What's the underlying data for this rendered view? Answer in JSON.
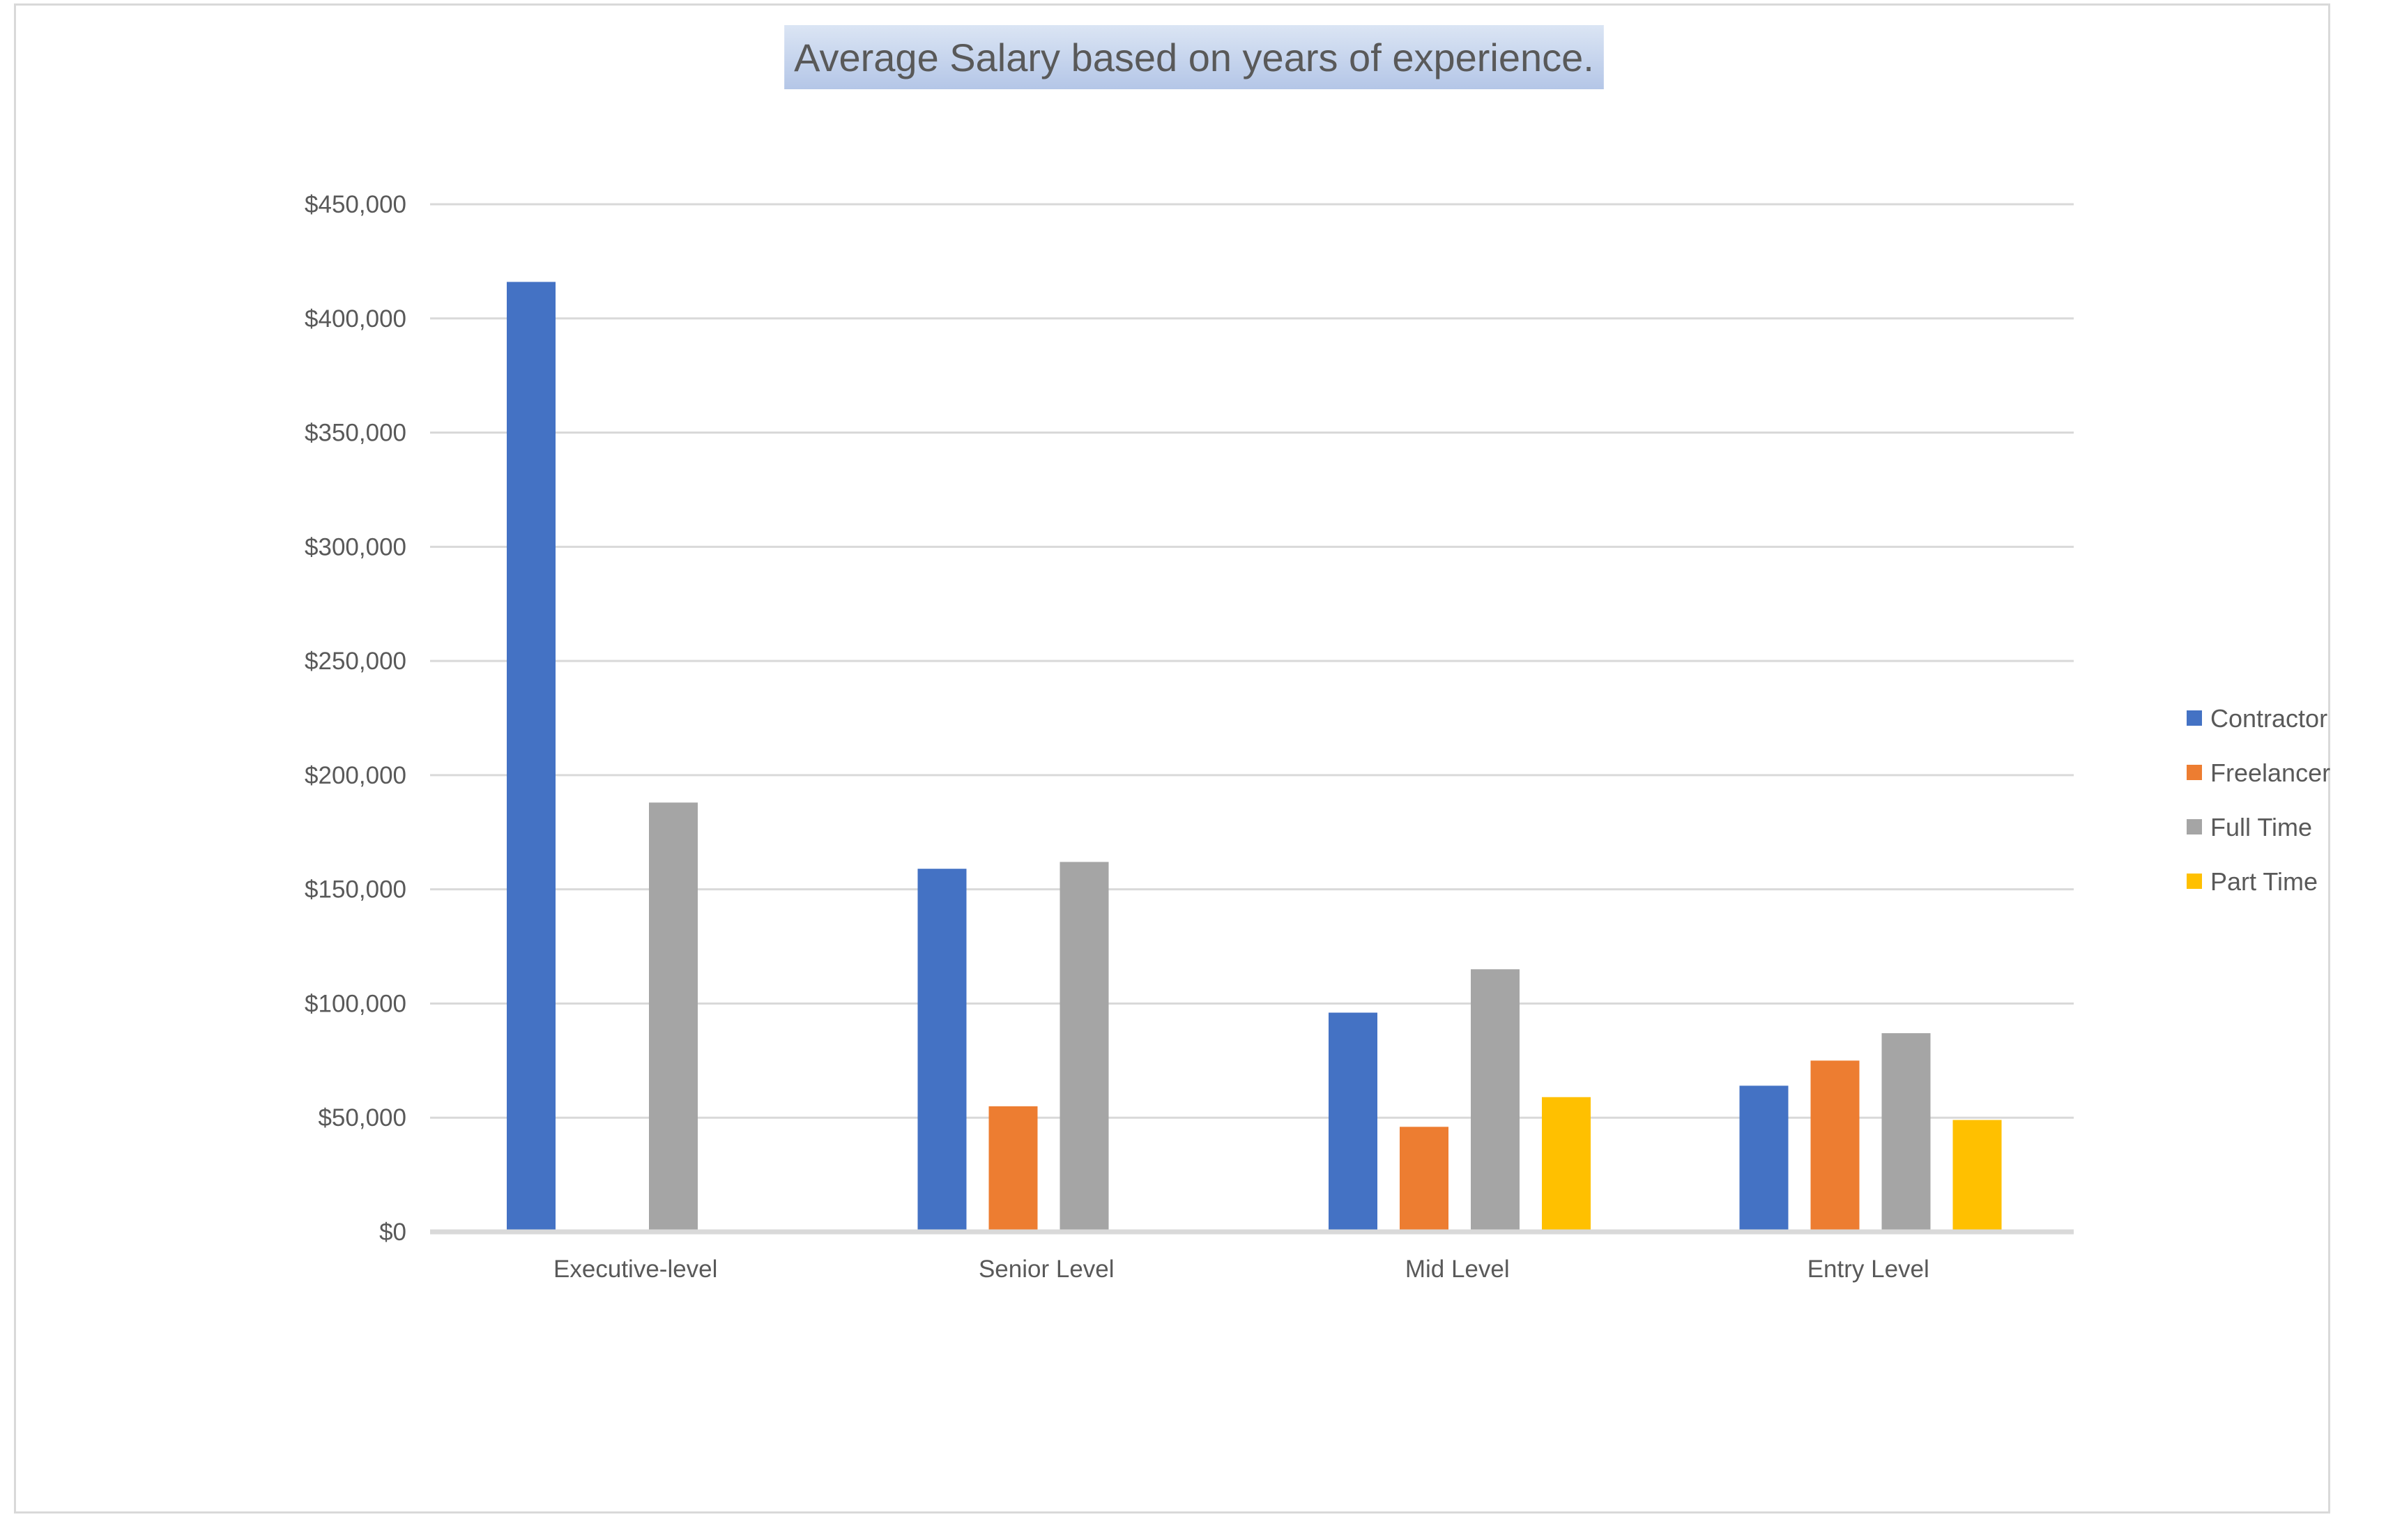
{
  "chart_data": {
    "type": "bar",
    "title": "Average Salary based on years of experience.",
    "xlabel": "",
    "ylabel": "",
    "categories": [
      "Executive-level",
      "Senior Level",
      "Mid Level",
      "Entry Level"
    ],
    "series": [
      {
        "name": "Contractor",
        "color": "#4472c4",
        "values": [
          416000,
          159000,
          96000,
          64000
        ]
      },
      {
        "name": "Freelancer",
        "color": "#ed7d31",
        "values": [
          null,
          55000,
          46000,
          75000
        ]
      },
      {
        "name": "Full Time",
        "color": "#a5a5a5",
        "values": [
          188000,
          162000,
          115000,
          87000
        ]
      },
      {
        "name": "Part Time",
        "color": "#ffc000",
        "values": [
          null,
          null,
          59000,
          49000
        ]
      }
    ],
    "ylim": [
      0,
      450000
    ],
    "yticks": [
      0,
      50000,
      100000,
      150000,
      200000,
      250000,
      300000,
      350000,
      400000,
      450000
    ],
    "ytick_labels": [
      "$0",
      "$50,000",
      "$100,000",
      "$150,000",
      "$200,000",
      "$250,000",
      "$300,000",
      "$350,000",
      "$400,000",
      "$450,000"
    ],
    "grid": true,
    "legend_position": "right",
    "title_highlight_color": "#b4c6e7"
  }
}
